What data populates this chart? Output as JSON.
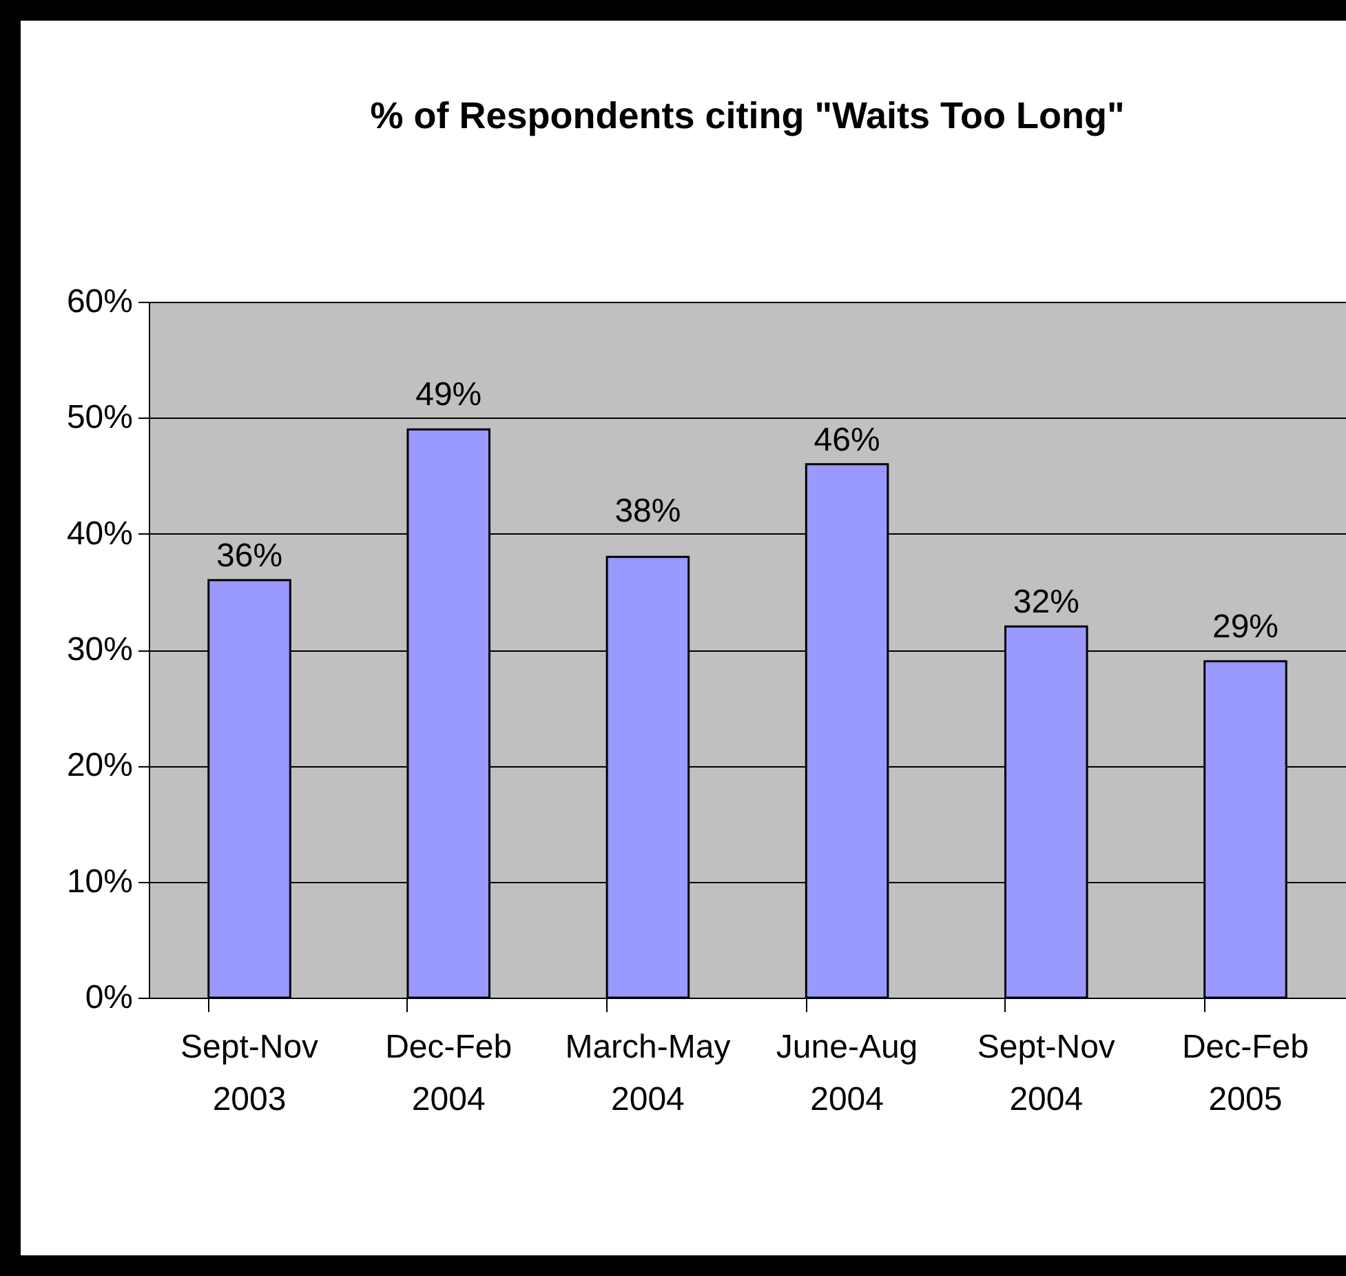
{
  "chart_data": {
    "type": "bar",
    "title": "% of Respondents citing \"Waits Too Long\"",
    "categories": [
      "Sept-Nov 2003",
      "Dec-Feb 2004",
      "March-May 2004",
      "June-Aug 2004",
      "Sept-Nov 2004",
      "Dec-Feb 2005"
    ],
    "values": [
      36,
      49,
      38,
      46,
      32,
      29
    ],
    "value_labels": [
      "36%",
      "49%",
      "38%",
      "46%",
      "32%",
      "29%"
    ],
    "color": "#9999ff",
    "ylim": [
      0,
      60
    ],
    "yticks": [
      {
        "value": 0,
        "label": "0%"
      },
      {
        "value": 10,
        "label": "10%"
      },
      {
        "value": 20,
        "label": "20%"
      },
      {
        "value": 30,
        "label": "30%"
      },
      {
        "value": 40,
        "label": "40%"
      },
      {
        "value": 50,
        "label": "50%"
      },
      {
        "value": 60,
        "label": "60%"
      }
    ],
    "grid": "y"
  }
}
